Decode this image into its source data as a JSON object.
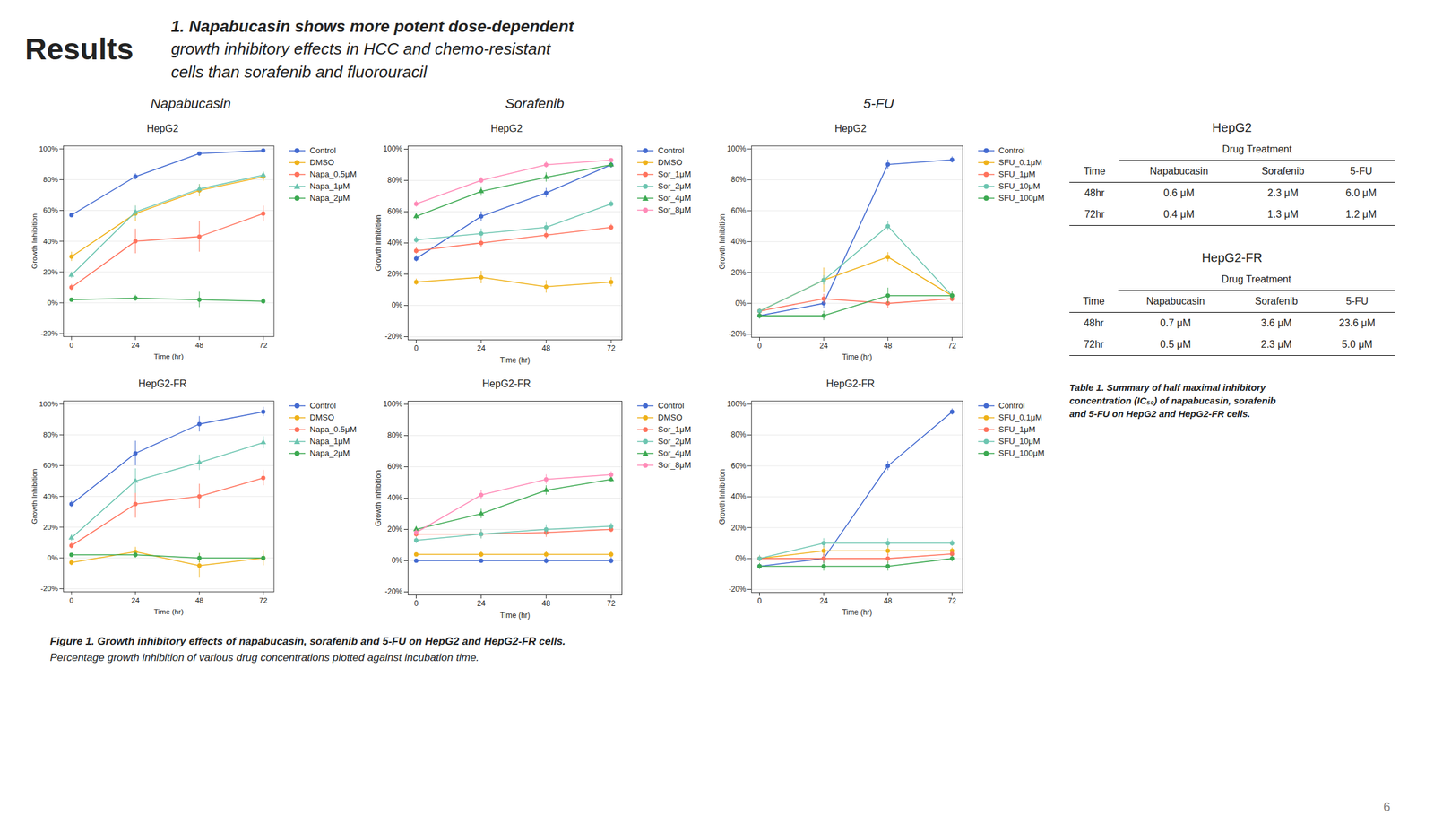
{
  "section": "Results",
  "title": [
    "1. Napabucasin shows more potent dose-dependent",
    "growth inhibitory effects in HCC and chemo-resistant",
    "cells than sorafenib and fluorouracil"
  ],
  "groups": [
    "Napabucasin",
    "Sorafenib",
    "5-FU"
  ],
  "chart_data": [
    {
      "type": "line",
      "title": "HepG2",
      "x": [
        0,
        24,
        48,
        72
      ],
      "xlabel": "Time (hr)",
      "ylabel": "Growth Inhibition",
      "xlim": [
        -3,
        76
      ],
      "xticks": [
        0,
        24,
        48,
        72
      ],
      "ylim": [
        -22,
        102
      ],
      "yticks": [
        {
          "value": -20,
          "label": "-20%"
        },
        {
          "value": 0,
          "label": "0%"
        },
        {
          "value": 20,
          "label": "20%"
        },
        {
          "value": 40,
          "label": "40%"
        },
        {
          "value": 60,
          "label": "60%"
        },
        {
          "value": 80,
          "label": "80%"
        },
        {
          "value": 100,
          "label": "100%"
        }
      ],
      "grid": true,
      "legend": "right",
      "series": [
        {
          "name": "Control",
          "marker": "circle",
          "values": [
            57,
            82,
            97,
            99
          ],
          "errors": [
            1,
            2,
            1,
            1
          ]
        },
        {
          "name": "DMSO",
          "marker": "circle",
          "values": [
            30,
            58,
            73,
            82
          ],
          "errors": [
            3,
            5,
            4,
            3
          ]
        },
        {
          "name": "Napa_0.5μM",
          "marker": "circle",
          "values": [
            10,
            40,
            43,
            58
          ],
          "errors": [
            2,
            8,
            10,
            5
          ]
        },
        {
          "name": "Napa_1μM",
          "marker": "triangle",
          "values": [
            18,
            59,
            74,
            83
          ],
          "errors": [
            2,
            4,
            3,
            2
          ]
        },
        {
          "name": "Napa_2μM",
          "marker": "circle",
          "values": [
            2,
            3,
            2,
            1
          ],
          "errors": [
            1,
            2,
            5,
            2
          ]
        }
      ]
    },
    {
      "type": "line",
      "title": "HepG2",
      "x": [
        0,
        24,
        48,
        72
      ],
      "xlabel": "Time (hr)",
      "ylabel": "Growth Inhibition",
      "xlim": [
        -3,
        76
      ],
      "xticks": [
        0,
        24,
        48,
        72
      ],
      "ylim": [
        -22,
        102
      ],
      "yticks": [
        {
          "value": -20,
          "label": "-20%"
        },
        {
          "value": 0,
          "label": "0%"
        },
        {
          "value": 20,
          "label": "20%"
        },
        {
          "value": 40,
          "label": "40%"
        },
        {
          "value": 60,
          "label": "60%"
        },
        {
          "value": 80,
          "label": "80%"
        },
        {
          "value": 100,
          "label": "100%"
        }
      ],
      "grid": true,
      "legend": "right",
      "series": [
        {
          "name": "Control",
          "marker": "circle",
          "values": [
            30,
            57,
            72,
            90
          ],
          "errors": [
            2,
            3,
            3,
            2
          ]
        },
        {
          "name": "DMSO",
          "marker": "circle",
          "values": [
            15,
            18,
            12,
            15
          ],
          "errors": [
            2,
            4,
            4,
            3
          ]
        },
        {
          "name": "Sor_1μM",
          "marker": "circle",
          "values": [
            35,
            40,
            45,
            50
          ],
          "errors": [
            2,
            3,
            3,
            2
          ]
        },
        {
          "name": "Sor_2μM",
          "marker": "circle",
          "values": [
            42,
            46,
            50,
            65
          ],
          "errors": [
            2,
            3,
            3,
            2
          ]
        },
        {
          "name": "Sor_4μM",
          "marker": "triangle",
          "values": [
            57,
            73,
            82,
            90
          ],
          "errors": [
            2,
            3,
            3,
            2
          ]
        },
        {
          "name": "Sor_8μM",
          "marker": "circle",
          "values": [
            65,
            80,
            90,
            93
          ],
          "errors": [
            2,
            2,
            2,
            1
          ]
        }
      ]
    },
    {
      "type": "line",
      "title": "HepG2",
      "x": [
        0,
        24,
        48,
        72
      ],
      "xlabel": "Time (hr)",
      "ylabel": "Growth Inhibition",
      "xlim": [
        -3,
        76
      ],
      "xticks": [
        0,
        24,
        48,
        72
      ],
      "ylim": [
        -22,
        102
      ],
      "yticks": [
        {
          "value": -20,
          "label": "-20%"
        },
        {
          "value": 0,
          "label": "0%"
        },
        {
          "value": 20,
          "label": "20%"
        },
        {
          "value": 40,
          "label": "40%"
        },
        {
          "value": 60,
          "label": "60%"
        },
        {
          "value": 80,
          "label": "80%"
        },
        {
          "value": 100,
          "label": "100%"
        }
      ],
      "grid": true,
      "legend": "right",
      "series": [
        {
          "name": "Control",
          "marker": "circle",
          "values": [
            -8,
            0,
            90,
            93
          ],
          "errors": [
            2,
            3,
            3,
            2
          ]
        },
        {
          "name": "SFU_0.1μM",
          "marker": "circle",
          "values": [
            -5,
            15,
            30,
            5
          ],
          "errors": [
            2,
            8,
            3,
            2
          ]
        },
        {
          "name": "SFU_1μM",
          "marker": "circle",
          "values": [
            -5,
            3,
            0,
            3
          ],
          "errors": [
            2,
            3,
            3,
            2
          ]
        },
        {
          "name": "SFU_10μM",
          "marker": "circle",
          "values": [
            -5,
            15,
            50,
            5
          ],
          "errors": [
            2,
            3,
            3,
            2
          ]
        },
        {
          "name": "SFU_100μM",
          "marker": "circle",
          "values": [
            -8,
            -8,
            5,
            5
          ],
          "errors": [
            2,
            3,
            5,
            3
          ]
        }
      ]
    },
    {
      "type": "line",
      "title": "HepG2-FR",
      "x": [
        0,
        24,
        48,
        72
      ],
      "xlabel": "Time (hr)",
      "ylabel": "Growth Inhibition",
      "xlim": [
        -3,
        76
      ],
      "xticks": [
        0,
        24,
        48,
        72
      ],
      "ylim": [
        -22,
        102
      ],
      "yticks": [
        {
          "value": -20,
          "label": "-20%"
        },
        {
          "value": 0,
          "label": "0%"
        },
        {
          "value": 20,
          "label": "20%"
        },
        {
          "value": 40,
          "label": "40%"
        },
        {
          "value": 60,
          "label": "60%"
        },
        {
          "value": 80,
          "label": "80%"
        },
        {
          "value": 100,
          "label": "100%"
        }
      ],
      "grid": true,
      "legend": "right",
      "series": [
        {
          "name": "Control",
          "marker": "circle",
          "values": [
            35,
            68,
            87,
            95
          ],
          "errors": [
            2,
            8,
            5,
            3
          ]
        },
        {
          "name": "DMSO",
          "marker": "circle",
          "values": [
            -3,
            4,
            -5,
            0
          ],
          "errors": [
            2,
            3,
            8,
            5
          ]
        },
        {
          "name": "Napa_0.5μM",
          "marker": "circle",
          "values": [
            8,
            35,
            40,
            52
          ],
          "errors": [
            2,
            9,
            8,
            5
          ]
        },
        {
          "name": "Napa_1μM",
          "marker": "triangle",
          "values": [
            13,
            50,
            62,
            75
          ],
          "errors": [
            2,
            8,
            5,
            4
          ]
        },
        {
          "name": "Napa_2μM",
          "marker": "circle",
          "values": [
            2,
            2,
            0,
            0
          ],
          "errors": [
            1,
            2,
            3,
            2
          ]
        }
      ]
    },
    {
      "type": "line",
      "title": "HepG2-FR",
      "x": [
        0,
        24,
        48,
        72
      ],
      "xlabel": "Time (hr)",
      "ylabel": "Growth Inhibition",
      "xlim": [
        -3,
        76
      ],
      "xticks": [
        0,
        24,
        48,
        72
      ],
      "ylim": [
        -22,
        102
      ],
      "yticks": [
        {
          "value": -20,
          "label": "-20%"
        },
        {
          "value": 0,
          "label": "0%"
        },
        {
          "value": 20,
          "label": "20%"
        },
        {
          "value": 40,
          "label": "40%"
        },
        {
          "value": 60,
          "label": "60%"
        },
        {
          "value": 80,
          "label": "80%"
        },
        {
          "value": 100,
          "label": "100%"
        }
      ],
      "grid": true,
      "legend": "right",
      "series": [
        {
          "name": "Control",
          "marker": "circle",
          "values": [
            0,
            0,
            0,
            0
          ],
          "errors": [
            1,
            1,
            2,
            2
          ]
        },
        {
          "name": "DMSO",
          "marker": "circle",
          "values": [
            4,
            4,
            4,
            4
          ],
          "errors": [
            1,
            2,
            2,
            2
          ]
        },
        {
          "name": "Sor_1μM",
          "marker": "circle",
          "values": [
            17,
            17,
            18,
            20
          ],
          "errors": [
            2,
            3,
            3,
            2
          ]
        },
        {
          "name": "Sor_2μM",
          "marker": "circle",
          "values": [
            13,
            17,
            20,
            22
          ],
          "errors": [
            2,
            3,
            3,
            2
          ]
        },
        {
          "name": "Sor_4μM",
          "marker": "triangle",
          "values": [
            20,
            30,
            45,
            52
          ],
          "errors": [
            2,
            3,
            3,
            2
          ]
        },
        {
          "name": "Sor_8μM",
          "marker": "circle",
          "values": [
            18,
            42,
            52,
            55
          ],
          "errors": [
            2,
            3,
            3,
            2
          ]
        }
      ]
    },
    {
      "type": "line",
      "title": "HepG2-FR",
      "x": [
        0,
        24,
        48,
        72
      ],
      "xlabel": "Time (hr)",
      "ylabel": "Growth Inhibition",
      "xlim": [
        -3,
        76
      ],
      "xticks": [
        0,
        24,
        48,
        72
      ],
      "ylim": [
        -22,
        102
      ],
      "yticks": [
        {
          "value": -20,
          "label": "-20%"
        },
        {
          "value": 0,
          "label": "0%"
        },
        {
          "value": 20,
          "label": "20%"
        },
        {
          "value": 40,
          "label": "40%"
        },
        {
          "value": 60,
          "label": "60%"
        },
        {
          "value": 80,
          "label": "80%"
        },
        {
          "value": 100,
          "label": "100%"
        }
      ],
      "grid": true,
      "legend": "right",
      "series": [
        {
          "name": "Control",
          "marker": "circle",
          "values": [
            -5,
            0,
            60,
            95
          ],
          "errors": [
            2,
            3,
            3,
            2
          ]
        },
        {
          "name": "SFU_0.1μM",
          "marker": "circle",
          "values": [
            0,
            5,
            5,
            5
          ],
          "errors": [
            2,
            3,
            3,
            2
          ]
        },
        {
          "name": "SFU_1μM",
          "marker": "circle",
          "values": [
            0,
            0,
            0,
            3
          ],
          "errors": [
            2,
            3,
            3,
            2
          ]
        },
        {
          "name": "SFU_10μM",
          "marker": "circle",
          "values": [
            0,
            10,
            10,
            10
          ],
          "errors": [
            2,
            3,
            3,
            2
          ]
        },
        {
          "name": "SFU_100μM",
          "marker": "circle",
          "values": [
            -5,
            -5,
            -5,
            0
          ],
          "errors": [
            2,
            3,
            3,
            2
          ]
        }
      ]
    }
  ],
  "tables": [
    {
      "title": "HepG2",
      "column_group": "Drug Treatment",
      "columns": [
        "Time",
        "Napabucasin",
        "Sorafenib",
        "5-FU"
      ],
      "rows": [
        [
          "48hr",
          "0.6 μM",
          "2.3 μM",
          "6.0 μM"
        ],
        [
          "72hr",
          "0.4 μM",
          "1.3 μM",
          "1.2 μM"
        ]
      ]
    },
    {
      "title": "HepG2-FR",
      "column_group": "Drug Treatment",
      "columns": [
        "Time",
        "Napabucasin",
        "Sorafenib",
        "5-FU"
      ],
      "rows": [
        [
          "48hr",
          "0.7 μM",
          "3.6 μM",
          "23.6 μM"
        ],
        [
          "72hr",
          "0.5 μM",
          "2.3 μM",
          "5.0 μM"
        ]
      ]
    }
  ],
  "table_caption": "Table 1. Summary of half maximal inhibitory\nconcentration (IC₅₀) of napabucasin, sorafenib\nand 5-FU on HepG2 and HepG2-FR cells.",
  "caption": [
    "Figure 1. Growth inhibitory effects of napabucasin, sorafenib and 5-FU on HepG2 and HepG2-FR cells.",
    "Percentage growth inhibition of various drug concentrations plotted against incubation time."
  ],
  "page_number": "6"
}
